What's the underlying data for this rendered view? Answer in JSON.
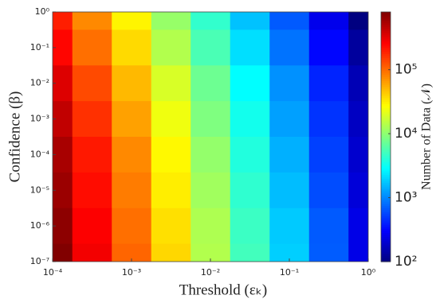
{
  "chart_data": {
    "type": "heatmap",
    "xlabel": "Threshold (εₖ)",
    "ylabel": "Confidence (β)",
    "x": [
      0.0001,
      0.000316,
      0.001,
      0.00316,
      0.01,
      0.0316,
      0.1,
      0.316,
      1
    ],
    "y": [
      1,
      0.1,
      0.01,
      0.001,
      0.0001,
      1e-05,
      1e-06,
      1e-07
    ],
    "values": [
      [
        200000,
        78000,
        30000,
        11000,
        4500,
        1700,
        680,
        260,
        100
      ],
      [
        250000,
        98000,
        38000,
        14000,
        5600,
        2200,
        850,
        320,
        130
      ],
      [
        350000,
        135000,
        51000,
        19500,
        7600,
        2900,
        1100,
        420,
        160
      ],
      [
        450000,
        170000,
        63000,
        24000,
        8900,
        3400,
        1260,
        480,
        180
      ],
      [
        560000,
        210000,
        78000,
        29000,
        10700,
        3900,
        1450,
        540,
        200
      ],
      [
        630000,
        235000,
        87000,
        32000,
        12000,
        4400,
        1630,
        600,
        220
      ],
      [
        710000,
        265000,
        98000,
        36000,
        13500,
        4900,
        1830,
        680,
        250
      ],
      [
        790000,
        290000,
        107000,
        39000,
        14000,
        5200,
        1900,
        690,
        250
      ]
    ],
    "xlim": [
      0.0001,
      1
    ],
    "ylim": [
      1e-07,
      1
    ],
    "log_x": true,
    "log_y": true,
    "xticks": [
      {
        "value": 0.0001,
        "label": "10⁻⁴"
      },
      {
        "value": 0.001,
        "label": "10⁻³"
      },
      {
        "value": 0.01,
        "label": "10⁻²"
      },
      {
        "value": 0.1,
        "label": "10⁻¹"
      },
      {
        "value": 1,
        "label": "10⁰"
      }
    ],
    "yticks": [
      {
        "value": 1,
        "label": "10⁰"
      },
      {
        "value": 0.1,
        "label": "10⁻¹"
      },
      {
        "value": 0.01,
        "label": "10⁻²"
      },
      {
        "value": 0.001,
        "label": "10⁻³"
      },
      {
        "value": 0.0001,
        "label": "10⁻⁴"
      },
      {
        "value": 1e-05,
        "label": "10⁻⁵"
      },
      {
        "value": 1e-06,
        "label": "10⁻⁶"
      },
      {
        "value": 1e-07,
        "label": "10⁻⁷"
      }
    ],
    "colormap": "jet",
    "colorbar": {
      "label": "Number of Data (𝒩)",
      "lim": [
        100,
        800000
      ],
      "ticks": [
        {
          "value": 100,
          "label": "10²"
        },
        {
          "value": 1000,
          "label": "10³"
        },
        {
          "value": 10000,
          "label": "10⁴"
        },
        {
          "value": 100000,
          "label": "10⁵"
        }
      ]
    }
  }
}
